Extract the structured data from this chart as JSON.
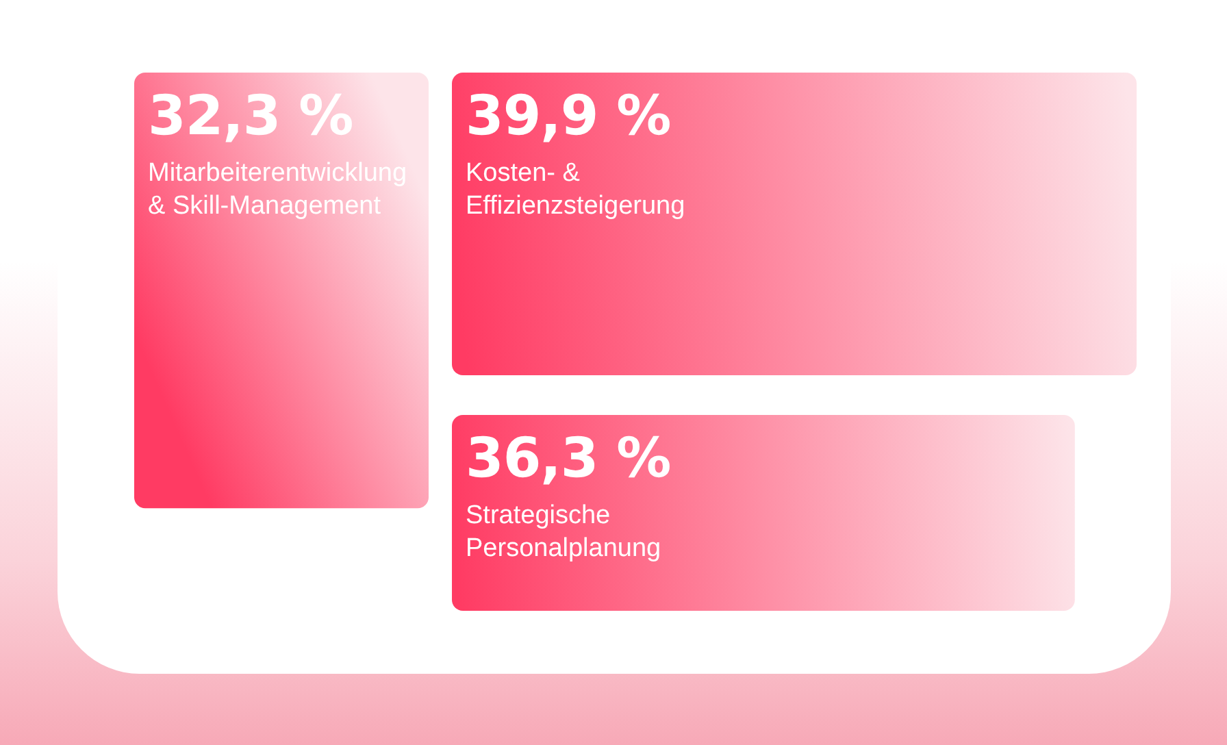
{
  "chart_data": {
    "type": "other",
    "categories": [
      "Mitarbeiterentwicklung & Skill-Management",
      "Kosten- & Effizienzsteigerung",
      "Strategische Personalplanung"
    ],
    "values": [
      32.3,
      39.9,
      36.3
    ],
    "value_labels": [
      "32,3 %",
      "39,9 %",
      "36,3 %"
    ],
    "colors": [
      "#ff3b63",
      "#ff3b63",
      "#ff3b63"
    ]
  }
}
